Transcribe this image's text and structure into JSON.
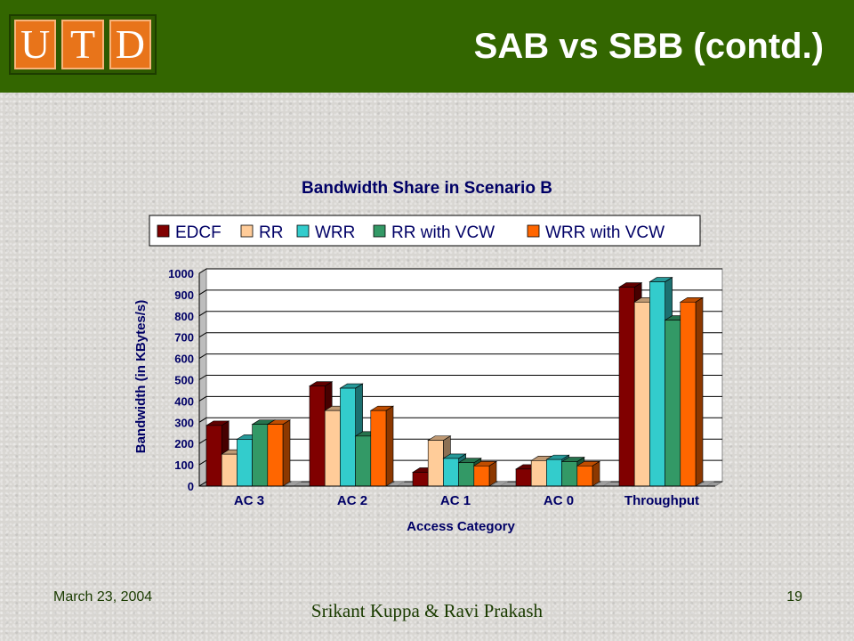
{
  "header": {
    "logo_letters": [
      "U",
      "T",
      "D"
    ],
    "title": "SAB vs SBB (contd.)",
    "bar_color": "#336600",
    "logo_color": "#e8741a"
  },
  "footer": {
    "date": "March 23, 2004",
    "authors": "Srikant Kuppa & Ravi Prakash",
    "page": "19"
  },
  "chart_data": {
    "type": "bar",
    "title": "Bandwidth Share in Scenario B",
    "xlabel": "Access Category",
    "ylabel": "Bandwidth (in KBytes/s)",
    "ylim": [
      0,
      1000
    ],
    "yticks": [
      0,
      100,
      200,
      300,
      400,
      500,
      600,
      700,
      800,
      900,
      1000
    ],
    "grid": true,
    "legend_position": "top",
    "categories": [
      "AC 3",
      "AC 2",
      "AC 1",
      "AC 0",
      "Throughput"
    ],
    "series": [
      {
        "name": "EDCF",
        "color": "#800000",
        "values": [
          285,
          470,
          65,
          80,
          935
        ]
      },
      {
        "name": "RR",
        "color": "#ffcc99",
        "values": [
          150,
          355,
          215,
          120,
          865
        ]
      },
      {
        "name": "WRR",
        "color": "#33cccc",
        "values": [
          220,
          460,
          130,
          125,
          960
        ]
      },
      {
        "name": "RR with VCW",
        "color": "#339966",
        "values": [
          290,
          235,
          110,
          115,
          780
        ]
      },
      {
        "name": "WRR with VCW",
        "color": "#ff6600",
        "values": [
          290,
          355,
          95,
          95,
          865
        ]
      }
    ]
  }
}
